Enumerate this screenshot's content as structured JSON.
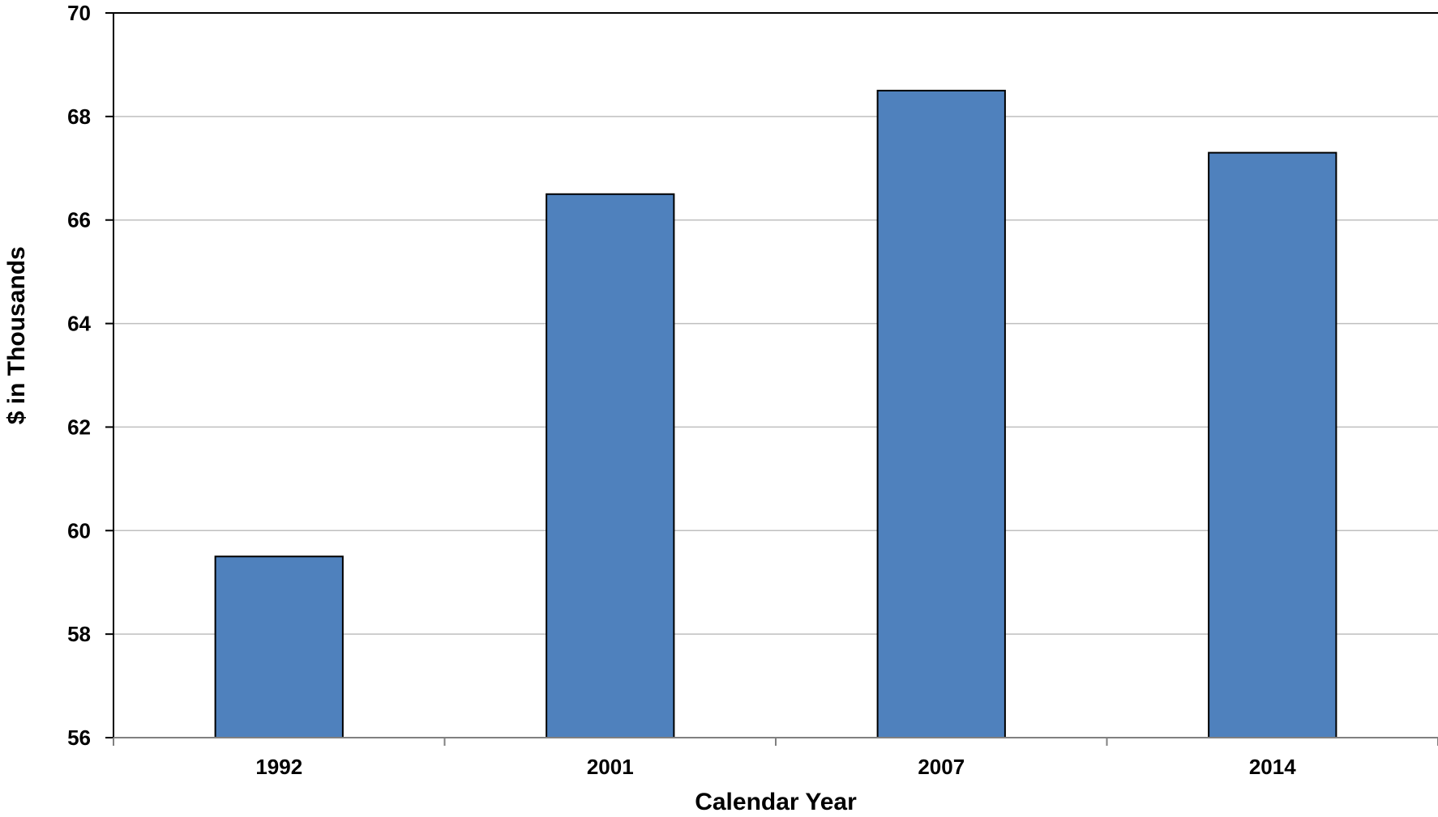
{
  "chart_data": {
    "type": "bar",
    "title": "",
    "xlabel": "Calendar Year",
    "ylabel": "$ in Thousands",
    "categories": [
      "1992",
      "2001",
      "2007",
      "2014"
    ],
    "series": [
      {
        "values": [
          59.5,
          66.5,
          68.5,
          67.3
        ]
      }
    ],
    "ylim": [
      56,
      70
    ],
    "yticks": [
      56,
      58,
      60,
      62,
      64,
      66,
      68,
      70
    ],
    "grid": true,
    "legend": "none",
    "bar_color": "#4F81BD",
    "grid_color": "#BFBFBF"
  }
}
